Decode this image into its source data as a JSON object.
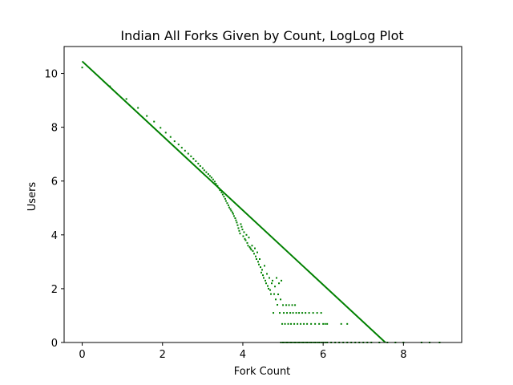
{
  "chart_data": {
    "type": "scatter",
    "title": "Indian All Forks Given by Count, LogLog Plot",
    "xlabel": "Fork Count",
    "ylabel": "Users",
    "xlim": [
      -0.45,
      9.45
    ],
    "ylim": [
      0,
      11
    ],
    "xticks": [
      0,
      2,
      4,
      6,
      8
    ],
    "yticks": [
      0,
      2,
      4,
      6,
      8,
      10
    ],
    "grid": false,
    "legend": "none",
    "colors": {
      "series": "#008000",
      "frame": "#000000",
      "background": "#ffffff"
    },
    "fit_line": {
      "x": [
        0,
        7.55
      ],
      "y": [
        10.45,
        0
      ]
    },
    "series": [
      {
        "points": [
          [
            0.0,
            10.22
          ],
          [
            0.69,
            9.52
          ],
          [
            1.1,
            9.05
          ],
          [
            1.39,
            8.72
          ],
          [
            1.61,
            8.42
          ],
          [
            1.79,
            8.21
          ],
          [
            1.95,
            7.98
          ],
          [
            2.08,
            7.8
          ],
          [
            2.2,
            7.64
          ],
          [
            2.3,
            7.48
          ],
          [
            2.4,
            7.36
          ],
          [
            2.48,
            7.24
          ],
          [
            2.56,
            7.13
          ],
          [
            2.64,
            7.02
          ],
          [
            2.71,
            6.92
          ],
          [
            2.77,
            6.83
          ],
          [
            2.83,
            6.74
          ],
          [
            2.89,
            6.65
          ],
          [
            2.94,
            6.56
          ],
          [
            3.0,
            6.48
          ],
          [
            3.04,
            6.4
          ],
          [
            3.09,
            6.33
          ],
          [
            3.14,
            6.26
          ],
          [
            3.18,
            6.19
          ],
          [
            3.22,
            6.13
          ],
          [
            3.26,
            6.06
          ],
          [
            3.3,
            5.98
          ],
          [
            3.33,
            5.9
          ],
          [
            3.37,
            5.82
          ],
          [
            3.4,
            5.74
          ],
          [
            3.43,
            5.66
          ],
          [
            3.47,
            5.58
          ],
          [
            3.5,
            5.5
          ],
          [
            3.53,
            5.42
          ],
          [
            3.56,
            5.34
          ],
          [
            3.58,
            5.26
          ],
          [
            3.61,
            5.18
          ],
          [
            3.64,
            5.1
          ],
          [
            3.66,
            5.02
          ],
          [
            3.69,
            4.96
          ],
          [
            3.71,
            4.9
          ],
          [
            3.74,
            4.84
          ],
          [
            3.76,
            4.78
          ],
          [
            3.78,
            4.7
          ],
          [
            3.81,
            4.62
          ],
          [
            3.83,
            4.54
          ],
          [
            3.85,
            4.46
          ],
          [
            3.87,
            4.36
          ],
          [
            3.89,
            4.25
          ],
          [
            3.91,
            4.15
          ],
          [
            3.93,
            4.05
          ],
          [
            3.95,
            4.4
          ],
          [
            3.97,
            4.3
          ],
          [
            3.99,
            4.2
          ],
          [
            4.01,
            3.95
          ],
          [
            4.03,
            4.1
          ],
          [
            4.05,
            3.85
          ],
          [
            4.07,
            3.8
          ],
          [
            4.09,
            4.0
          ],
          [
            4.11,
            3.7
          ],
          [
            4.13,
            3.6
          ],
          [
            4.15,
            3.9
          ],
          [
            4.17,
            3.55
          ],
          [
            4.19,
            3.5
          ],
          [
            4.21,
            3.45
          ],
          [
            4.23,
            3.6
          ],
          [
            4.25,
            3.4
          ],
          [
            4.28,
            3.3
          ],
          [
            4.3,
            3.5
          ],
          [
            4.32,
            3.2
          ],
          [
            4.34,
            3.1
          ],
          [
            4.36,
            3.35
          ],
          [
            4.38,
            3.0
          ],
          [
            4.4,
            2.9
          ],
          [
            4.42,
            3.1
          ],
          [
            4.44,
            2.8
          ],
          [
            4.46,
            2.6
          ],
          [
            4.48,
            2.7
          ],
          [
            4.5,
            2.5
          ],
          [
            4.52,
            2.4
          ],
          [
            4.54,
            2.85
          ],
          [
            4.56,
            2.3
          ],
          [
            4.58,
            2.2
          ],
          [
            4.6,
            2.55
          ],
          [
            4.62,
            2.1
          ],
          [
            4.64,
            2.0
          ],
          [
            4.66,
            2.4
          ],
          [
            4.68,
            1.95
          ],
          [
            4.7,
            1.8
          ],
          [
            4.72,
            2.2
          ],
          [
            4.74,
            2.3
          ],
          [
            4.76,
            1.1
          ],
          [
            4.78,
            1.8
          ],
          [
            4.8,
            2.08
          ],
          [
            4.82,
            1.6
          ],
          [
            4.84,
            2.4
          ],
          [
            4.86,
            1.4
          ],
          [
            4.88,
            1.79
          ],
          [
            4.9,
            2.2
          ],
          [
            4.92,
            1.1
          ],
          [
            4.94,
            1.6
          ],
          [
            4.96,
            2.3
          ],
          [
            4.98,
            0.69
          ],
          [
            5.0,
            1.39
          ],
          [
            5.02,
            1.1
          ],
          [
            5.05,
            0.69
          ],
          [
            5.08,
            1.39
          ],
          [
            5.1,
            1.1
          ],
          [
            5.13,
            0.69
          ],
          [
            5.15,
            1.39
          ],
          [
            5.18,
            1.1
          ],
          [
            5.2,
            0.69
          ],
          [
            5.23,
            1.39
          ],
          [
            5.25,
            1.1
          ],
          [
            5.28,
            0.69
          ],
          [
            5.3,
            1.39
          ],
          [
            5.33,
            1.1
          ],
          [
            5.36,
            0.69
          ],
          [
            5.4,
            1.1
          ],
          [
            5.44,
            0.69
          ],
          [
            5.48,
            1.1
          ],
          [
            5.52,
            0.69
          ],
          [
            5.56,
            1.1
          ],
          [
            5.6,
            0.69
          ],
          [
            5.65,
            1.1
          ],
          [
            5.7,
            0.69
          ],
          [
            5.75,
            1.1
          ],
          [
            5.8,
            0.69
          ],
          [
            5.85,
            1.1
          ],
          [
            5.9,
            0.69
          ],
          [
            5.95,
            1.1
          ],
          [
            6.0,
            0.69
          ],
          [
            6.05,
            0.69
          ],
          [
            6.1,
            0.69
          ],
          [
            6.45,
            0.69
          ],
          [
            6.6,
            0.69
          ],
          [
            4.95,
            0.0
          ],
          [
            5.0,
            0.0
          ],
          [
            5.05,
            0.0
          ],
          [
            5.1,
            0.0
          ],
          [
            5.15,
            0.0
          ],
          [
            5.2,
            0.0
          ],
          [
            5.25,
            0.0
          ],
          [
            5.3,
            0.0
          ],
          [
            5.35,
            0.0
          ],
          [
            5.4,
            0.0
          ],
          [
            5.45,
            0.0
          ],
          [
            5.5,
            0.0
          ],
          [
            5.55,
            0.0
          ],
          [
            5.6,
            0.0
          ],
          [
            5.65,
            0.0
          ],
          [
            5.7,
            0.0
          ],
          [
            5.75,
            0.0
          ],
          [
            5.8,
            0.0
          ],
          [
            5.85,
            0.0
          ],
          [
            5.9,
            0.0
          ],
          [
            5.95,
            0.0
          ],
          [
            6.0,
            0.0
          ],
          [
            6.05,
            0.0
          ],
          [
            6.1,
            0.0
          ],
          [
            6.2,
            0.0
          ],
          [
            6.3,
            0.0
          ],
          [
            6.4,
            0.0
          ],
          [
            6.5,
            0.0
          ],
          [
            6.6,
            0.0
          ],
          [
            6.7,
            0.0
          ],
          [
            6.8,
            0.0
          ],
          [
            6.9,
            0.0
          ],
          [
            7.0,
            0.0
          ],
          [
            7.1,
            0.0
          ],
          [
            7.2,
            0.0
          ],
          [
            7.4,
            0.0
          ],
          [
            7.6,
            0.0
          ],
          [
            7.8,
            0.0
          ],
          [
            8.0,
            0.0
          ],
          [
            8.45,
            0.0
          ],
          [
            8.65,
            0.0
          ],
          [
            8.9,
            0.0
          ]
        ]
      }
    ]
  }
}
